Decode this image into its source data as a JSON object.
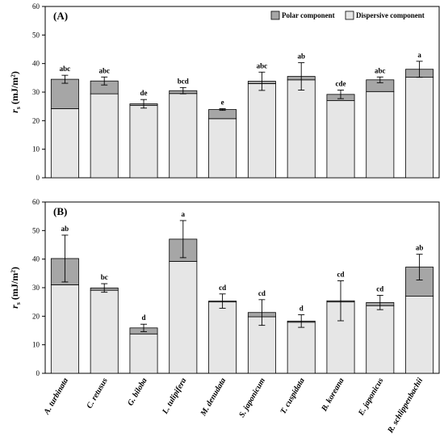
{
  "chart_data": [
    {
      "type": "bar",
      "stacked": true,
      "panel_label": "(A)",
      "ylabel": "r_s (mJ/m²)",
      "ylabel_parts": {
        "symbol": "r",
        "subscript": "s",
        "units": " (mJ/m²)"
      },
      "ylim": [
        0,
        60
      ],
      "yticks": [
        0,
        10,
        20,
        30,
        40,
        50,
        60
      ],
      "grid": false,
      "legend": {
        "position": "top-right",
        "entries": [
          "Polar component",
          "Dispersive component"
        ]
      },
      "categories": [
        "A. turbinata",
        "C. retusus",
        "G. biloba",
        "L. tulipifera",
        "M. denudata",
        "S. japonicum",
        "T. cuspidata",
        "B. koreana",
        "E. japonicus",
        "R. schlippenbachii"
      ],
      "series": [
        {
          "name": "Dispersive component",
          "color": "#e6e6e6",
          "values": [
            24.2,
            29.4,
            25.3,
            29.5,
            20.7,
            33.0,
            34.3,
            27.0,
            30.2,
            35.2
          ]
        },
        {
          "name": "Polar component",
          "color": "#a6a6a6",
          "values": [
            10.3,
            4.5,
            0.6,
            1.0,
            3.2,
            0.8,
            1.2,
            2.2,
            4.1,
            2.8
          ]
        }
      ],
      "totals": [
        34.5,
        33.9,
        25.9,
        30.5,
        23.9,
        33.8,
        35.5,
        29.2,
        34.3,
        38.0
      ],
      "errors": [
        1.4,
        1.4,
        1.5,
        1.1,
        0.3,
        3.2,
        4.8,
        1.5,
        1.0,
        2.8
      ],
      "significance_letters": [
        "abc",
        "abc",
        "de",
        "bcd",
        "e",
        "abc",
        "ab",
        "cde",
        "abc",
        "a"
      ]
    },
    {
      "type": "bar",
      "stacked": true,
      "panel_label": "(B)",
      "ylabel": "r_s (mJ/m²)",
      "ylabel_parts": {
        "symbol": "r",
        "subscript": "s",
        "units": " (mJ/m²)"
      },
      "ylim": [
        0,
        60
      ],
      "yticks": [
        0,
        10,
        20,
        30,
        40,
        50,
        60
      ],
      "grid": false,
      "categories": [
        "A. turbinata",
        "C. retusus",
        "G. biloba",
        "L. tulipifera",
        "M. denudata",
        "S. japonicum",
        "T. cuspidata",
        "B. koreana",
        "E. japonicus",
        "R. schlippenbachii"
      ],
      "series": [
        {
          "name": "Dispersive component",
          "color": "#e6e6e6",
          "values": [
            31.0,
            29.1,
            13.8,
            39.2,
            25.0,
            19.8,
            17.9,
            25.0,
            23.7,
            27.0
          ]
        },
        {
          "name": "Polar component",
          "color": "#a6a6a6",
          "values": [
            9.2,
            0.8,
            2.1,
            7.8,
            0.3,
            1.5,
            0.4,
            0.4,
            1.1,
            10.2
          ]
        }
      ],
      "totals": [
        40.2,
        29.9,
        15.9,
        47.0,
        25.3,
        21.3,
        18.3,
        25.4,
        24.8,
        37.2
      ],
      "errors": [
        8.2,
        1.5,
        1.3,
        6.5,
        2.5,
        4.5,
        2.2,
        7.0,
        2.5,
        4.5
      ],
      "significance_letters": [
        "ab",
        "bc",
        "d",
        "a",
        "cd",
        "cd",
        "d",
        "cd",
        "cd",
        "ab"
      ]
    }
  ]
}
